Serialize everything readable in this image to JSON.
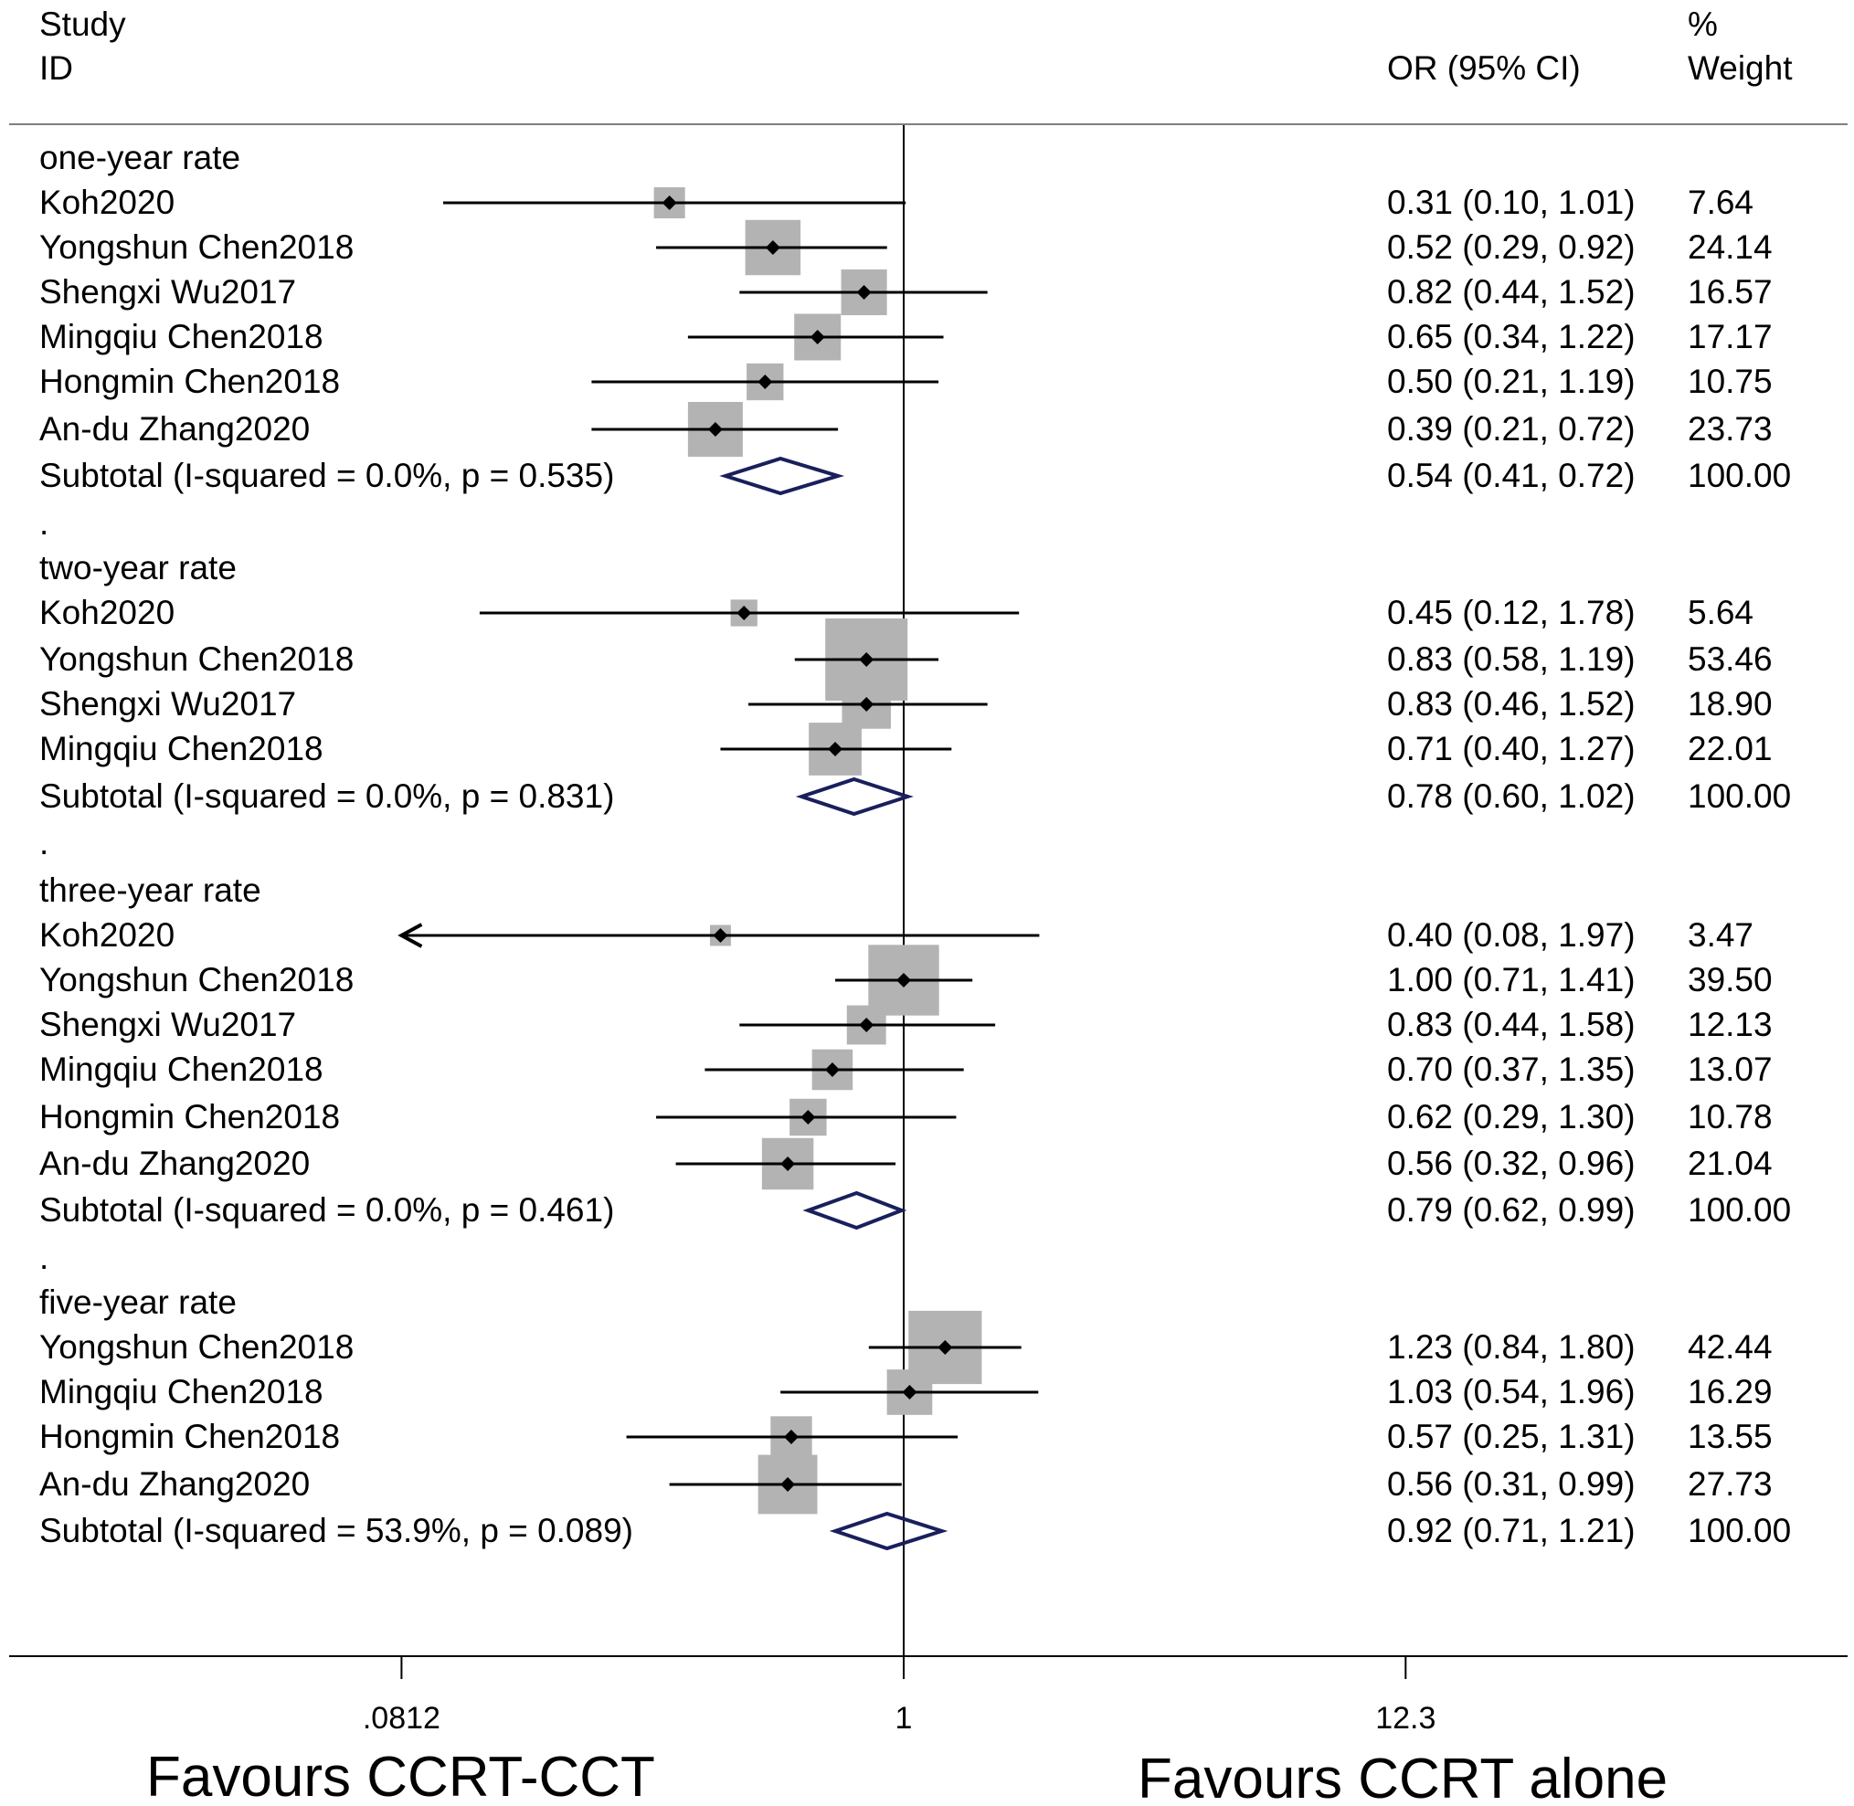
{
  "chart_data": {
    "type": "forest",
    "header": {
      "study_l1": "Study",
      "study_l2": "ID",
      "or_label": "OR (95% CI)",
      "weight_l1": "%",
      "weight_l2": "Weight"
    },
    "axis": {
      "scale": "log",
      "ticks": [
        {
          "value": 0.0812,
          "label": ".0812"
        },
        {
          "value": 1,
          "label": "1"
        },
        {
          "value": 12.3,
          "label": "12.3"
        }
      ],
      "reference": 1
    },
    "favours_left": "Favours CCRT-CCT",
    "favours_right": "Favours CCRT alone",
    "rows": [
      {
        "kind": "group",
        "label": "one-year rate"
      },
      {
        "kind": "study",
        "label": "Koh2020",
        "or": 0.31,
        "lo": 0.1,
        "hi": 1.01,
        "weight": 7.64,
        "text": "0.31 (0.10, 1.01)",
        "wtext": "7.64"
      },
      {
        "kind": "study",
        "label": "Yongshun Chen2018",
        "or": 0.52,
        "lo": 0.29,
        "hi": 0.92,
        "weight": 24.14,
        "text": "0.52 (0.29, 0.92)",
        "wtext": "24.14"
      },
      {
        "kind": "study",
        "label": "Shengxi Wu2017",
        "or": 0.82,
        "lo": 0.44,
        "hi": 1.52,
        "weight": 16.57,
        "text": "0.82 (0.44, 1.52)",
        "wtext": "16.57"
      },
      {
        "kind": "study",
        "label": "Mingqiu Chen2018",
        "or": 0.65,
        "lo": 0.34,
        "hi": 1.22,
        "weight": 17.17,
        "text": "0.65 (0.34, 1.22)",
        "wtext": "17.17"
      },
      {
        "kind": "study",
        "label": "Hongmin Chen2018",
        "or": 0.5,
        "lo": 0.21,
        "hi": 1.19,
        "weight": 10.75,
        "text": "0.50 (0.21, 1.19)",
        "wtext": "10.75"
      },
      {
        "kind": "study",
        "label": "An-du Zhang2020",
        "or": 0.39,
        "lo": 0.21,
        "hi": 0.72,
        "weight": 23.73,
        "text": "0.39 (0.21, 0.72)",
        "wtext": "23.73"
      },
      {
        "kind": "subtotal",
        "label": "Subtotal  (I-squared = 0.0%, p = 0.535)",
        "or": 0.54,
        "lo": 0.41,
        "hi": 0.72,
        "text": "0.54 (0.41, 0.72)",
        "wtext": "100.00"
      },
      {
        "kind": "dot",
        "label": "."
      },
      {
        "kind": "group",
        "label": "two-year rate"
      },
      {
        "kind": "study",
        "label": "Koh2020",
        "or": 0.45,
        "lo": 0.12,
        "hi": 1.78,
        "weight": 5.64,
        "text": "0.45 (0.12, 1.78)",
        "wtext": "5.64"
      },
      {
        "kind": "study",
        "label": "Yongshun Chen2018",
        "or": 0.83,
        "lo": 0.58,
        "hi": 1.19,
        "weight": 53.46,
        "text": "0.83 (0.58, 1.19)",
        "wtext": "53.46"
      },
      {
        "kind": "study",
        "label": "Shengxi Wu2017",
        "or": 0.83,
        "lo": 0.46,
        "hi": 1.52,
        "weight": 18.9,
        "text": "0.83 (0.46, 1.52)",
        "wtext": "18.90"
      },
      {
        "kind": "study",
        "label": "Mingqiu Chen2018",
        "or": 0.71,
        "lo": 0.4,
        "hi": 1.27,
        "weight": 22.01,
        "text": "0.71 (0.40, 1.27)",
        "wtext": "22.01"
      },
      {
        "kind": "subtotal",
        "label": "Subtotal  (I-squared = 0.0%, p = 0.831)",
        "or": 0.78,
        "lo": 0.6,
        "hi": 1.02,
        "text": "0.78 (0.60, 1.02)",
        "wtext": "100.00"
      },
      {
        "kind": "dot",
        "label": "."
      },
      {
        "kind": "group",
        "label": "three-year rate"
      },
      {
        "kind": "study",
        "label": "Koh2020",
        "or": 0.4,
        "lo": 0.08,
        "hi": 1.97,
        "weight": 3.47,
        "text": "0.40 (0.08, 1.97)",
        "wtext": "3.47",
        "arrow_left": true
      },
      {
        "kind": "study",
        "label": "Yongshun Chen2018",
        "or": 1.0,
        "lo": 0.71,
        "hi": 1.41,
        "weight": 39.5,
        "text": "1.00 (0.71, 1.41)",
        "wtext": "39.50"
      },
      {
        "kind": "study",
        "label": "Shengxi Wu2017",
        "or": 0.83,
        "lo": 0.44,
        "hi": 1.58,
        "weight": 12.13,
        "text": "0.83 (0.44, 1.58)",
        "wtext": "12.13"
      },
      {
        "kind": "study",
        "label": "Mingqiu Chen2018",
        "or": 0.7,
        "lo": 0.37,
        "hi": 1.35,
        "weight": 13.07,
        "text": "0.70 (0.37, 1.35)",
        "wtext": "13.07"
      },
      {
        "kind": "study",
        "label": "Hongmin Chen2018",
        "or": 0.62,
        "lo": 0.29,
        "hi": 1.3,
        "weight": 10.78,
        "text": "0.62 (0.29, 1.30)",
        "wtext": "10.78"
      },
      {
        "kind": "study",
        "label": "An-du Zhang2020",
        "or": 0.56,
        "lo": 0.32,
        "hi": 0.96,
        "weight": 21.04,
        "text": "0.56 (0.32, 0.96)",
        "wtext": "21.04"
      },
      {
        "kind": "subtotal",
        "label": "Subtotal  (I-squared = 0.0%, p = 0.461)",
        "or": 0.79,
        "lo": 0.62,
        "hi": 0.99,
        "text": "0.79 (0.62, 0.99)",
        "wtext": "100.00"
      },
      {
        "kind": "dot",
        "label": "."
      },
      {
        "kind": "group",
        "label": "five-year rate"
      },
      {
        "kind": "study",
        "label": "Yongshun Chen2018",
        "or": 1.23,
        "lo": 0.84,
        "hi": 1.8,
        "weight": 42.44,
        "text": "1.23 (0.84, 1.80)",
        "wtext": "42.44"
      },
      {
        "kind": "study",
        "label": "Mingqiu Chen2018",
        "or": 1.03,
        "lo": 0.54,
        "hi": 1.96,
        "weight": 16.29,
        "text": "1.03 (0.54, 1.96)",
        "wtext": "16.29"
      },
      {
        "kind": "study",
        "label": "Hongmin Chen2018",
        "or": 0.57,
        "lo": 0.25,
        "hi": 1.31,
        "weight": 13.55,
        "text": "0.57 (0.25, 1.31)",
        "wtext": "13.55"
      },
      {
        "kind": "study",
        "label": "An-du Zhang2020",
        "or": 0.56,
        "lo": 0.31,
        "hi": 0.99,
        "weight": 27.73,
        "text": "0.56 (0.31, 0.99)",
        "wtext": "27.73"
      },
      {
        "kind": "subtotal",
        "label": "Subtotal  (I-squared = 53.9%, p = 0.089)",
        "or": 0.92,
        "lo": 0.71,
        "hi": 1.21,
        "text": "0.92 (0.71, 1.21)",
        "wtext": "100.00"
      },
      {
        "kind": "dot",
        "label": "."
      }
    ],
    "colors": {
      "box": "#b3b3b3",
      "line": "#000000",
      "diamond": "#1a1f5c",
      "rule": "#7f7f7f"
    }
  }
}
